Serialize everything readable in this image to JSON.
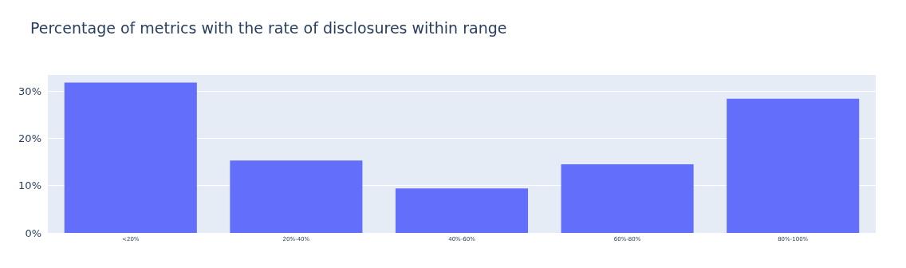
{
  "chart_data": {
    "type": "bar",
    "title": "Percentage of metrics with the rate of disclosures within range",
    "categories": [
      "<20%",
      "20%-40%",
      "40%-60%",
      "60%-80%",
      "80%-100%"
    ],
    "values": [
      31.8,
      15.3,
      9.4,
      14.5,
      28.4
    ],
    "color": "#636efa",
    "ylim": [
      0,
      33.4
    ],
    "yticks": [
      {
        "value": 0,
        "label": "0%"
      },
      {
        "value": 10,
        "label": "10%"
      },
      {
        "value": 20,
        "label": "20%"
      },
      {
        "value": 30,
        "label": "30%"
      }
    ],
    "grid": "y"
  }
}
